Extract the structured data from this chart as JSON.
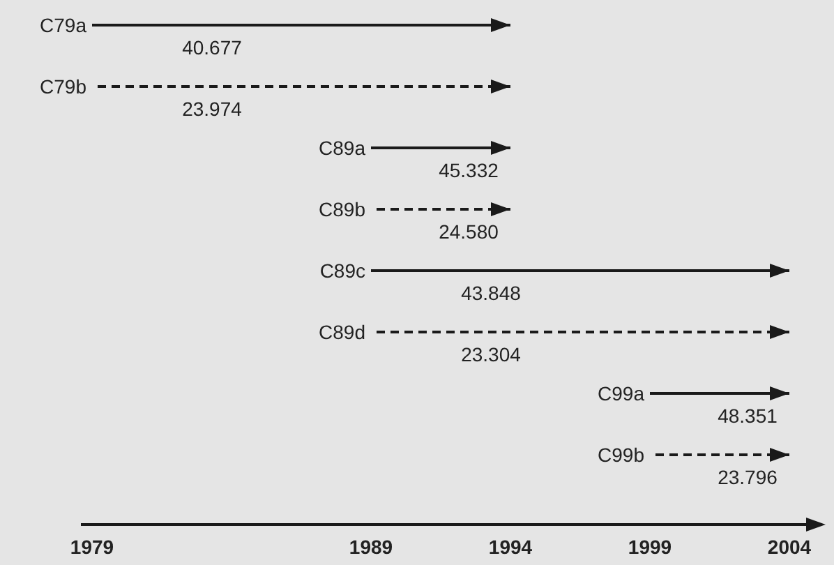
{
  "chart_data": {
    "type": "bar",
    "orientation": "horizontal",
    "categories": [
      "C79a",
      "C79b",
      "C89a",
      "C89b",
      "C89c",
      "C89d",
      "C99a",
      "C99b"
    ],
    "series": [
      {
        "color": "#1a1a1a",
        "line_style": "solid",
        "base": [
          1979,
          null,
          1989,
          null,
          1989,
          null,
          1999,
          null
        ],
        "values": [
          15,
          null,
          5,
          null,
          15,
          null,
          5,
          null
        ]
      },
      {
        "color": "#1a1a1a",
        "line_style": "dashed",
        "base": [
          null,
          1979,
          null,
          1989,
          null,
          1989,
          null,
          1999
        ],
        "values": [
          null,
          15,
          null,
          5,
          null,
          15,
          null,
          5
        ]
      }
    ],
    "xlim": [
      1978.6,
      2005.3
    ],
    "xticks": [
      1979,
      1989,
      1994,
      1999,
      2004
    ],
    "annotations": [
      "40.677",
      "23.974",
      "45.332",
      "24.580",
      "43.848",
      "23.304",
      "48.351",
      "23.796"
    ]
  }
}
